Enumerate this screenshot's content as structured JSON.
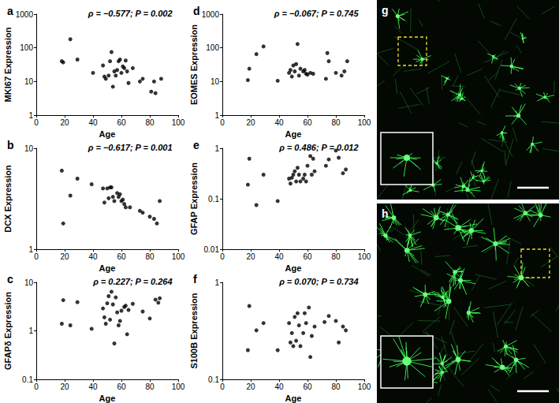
{
  "chart_data": [
    {
      "type": "scatter",
      "title": "a",
      "annotations": [
        "ρ = −0.577; P = 0.002"
      ],
      "x_label": "Age",
      "y_label": "MKI67 Expression",
      "x": [
        18,
        19,
        24,
        29,
        40,
        47,
        48,
        49,
        51,
        52,
        53,
        54,
        55,
        56,
        57,
        58,
        59,
        60,
        61,
        62,
        63,
        64,
        65,
        68,
        73,
        75,
        81,
        83,
        84,
        88
      ],
      "values": [
        40,
        37,
        180,
        45,
        18,
        30,
        14,
        12,
        15,
        40,
        75,
        7,
        20,
        15,
        22,
        40,
        45,
        18,
        28,
        25,
        42,
        20,
        9,
        25,
        10,
        12,
        5,
        10,
        4.5,
        12
      ],
      "xlim": [
        0,
        100
      ],
      "xticks": [
        0,
        20,
        40,
        60,
        80,
        100
      ],
      "ylim": [
        1,
        1000
      ],
      "yticks": [
        1,
        10,
        100,
        1000
      ],
      "log": "y",
      "grid": false,
      "color": "#000000",
      "marker": "circle"
    },
    {
      "type": "scatter",
      "title": "b",
      "annotations": [
        "ρ = −0.617; P = 0.001"
      ],
      "x_label": "Age",
      "y_label": "DCX Expression",
      "x": [
        18,
        19,
        24,
        29,
        39,
        47,
        48,
        50,
        51,
        52,
        53,
        54,
        55,
        57,
        58,
        59,
        60,
        61,
        62,
        63,
        66,
        73,
        75,
        80,
        83,
        85,
        87
      ],
      "values": [
        6,
        1.8,
        3.4,
        5,
        4.4,
        4,
        2.9,
        4,
        3.2,
        4.1,
        4.1,
        3.3,
        3.0,
        3.6,
        3.3,
        3.5,
        3.0,
        3.1,
        2.8,
        2.6,
        2.6,
        2.4,
        2.3,
        2.1,
        2.0,
        1.8,
        3.0
      ],
      "xlim": [
        0,
        100
      ],
      "xticks": [
        0,
        20,
        40,
        60,
        80,
        100
      ],
      "ylim": [
        1,
        10
      ],
      "yticks": [
        1,
        10
      ],
      "log": "y",
      "grid": false,
      "color": "#000000",
      "marker": "circle"
    },
    {
      "type": "scatter",
      "title": "c",
      "annotations": [
        "ρ = 0.227; P = 0.264"
      ],
      "x_label": "Age",
      "y_label": "GFAPδ Expression",
      "x": [
        18,
        19,
        24,
        29,
        39,
        47,
        48,
        49,
        50,
        51,
        52,
        53,
        54,
        55,
        56,
        57,
        58,
        59,
        60,
        62,
        63,
        64,
        65,
        68,
        75,
        80,
        84,
        86,
        87
      ],
      "values": [
        1.4,
        4.3,
        1.3,
        3.9,
        1.1,
        2.9,
        1.9,
        1.4,
        3.7,
        5.2,
        1.7,
        6.4,
        3.5,
        0.55,
        4.9,
        2.4,
        1.3,
        1.6,
        2.6,
        3.1,
        3.3,
        0.85,
        2.7,
        3.6,
        2.5,
        1.8,
        4.4,
        3.8,
        4.7
      ],
      "xlim": [
        0,
        100
      ],
      "xticks": [
        0,
        20,
        40,
        60,
        80,
        100
      ],
      "ylim": [
        0.1,
        10
      ],
      "yticks": [
        0.1,
        1,
        10
      ],
      "log": "y",
      "grid": false,
      "color": "#000000",
      "marker": "circle"
    },
    {
      "type": "scatter",
      "title": "d",
      "annotations": [
        "ρ = −0.067; P = 0.745"
      ],
      "x_label": "Age",
      "y_label": "EOMES Expression",
      "x": [
        18,
        19,
        24,
        29,
        39,
        47,
        48,
        49,
        50,
        51,
        52,
        53,
        54,
        55,
        57,
        58,
        59,
        60,
        62,
        64,
        73,
        74,
        75,
        80,
        84,
        86,
        88
      ],
      "values": [
        11,
        24,
        65,
        110,
        10.5,
        18,
        22,
        14,
        30,
        20,
        33,
        130,
        15,
        24,
        20,
        22,
        17,
        16,
        18,
        17,
        12,
        70,
        40,
        18,
        15,
        20,
        40
      ],
      "xlim": [
        0,
        100
      ],
      "xticks": [
        0,
        20,
        40,
        60,
        80,
        100
      ],
      "ylim": [
        1,
        1000
      ],
      "yticks": [
        1,
        10,
        100,
        1000
      ],
      "log": "y",
      "grid": false,
      "color": "#000000",
      "marker": "circle"
    },
    {
      "type": "scatter",
      "title": "e",
      "annotations": [
        "ρ = 0.486; P = 0.012"
      ],
      "x_label": "Age",
      "y_label": "GFAP Expression",
      "x": [
        18,
        19,
        24,
        29,
        39,
        47,
        48,
        49,
        50,
        51,
        52,
        53,
        54,
        55,
        57,
        58,
        59,
        60,
        62,
        63,
        64,
        65,
        73,
        75,
        80,
        82,
        85,
        87
      ],
      "values": [
        0.19,
        0.62,
        0.075,
        0.3,
        0.09,
        0.25,
        0.2,
        0.26,
        0.3,
        0.35,
        0.22,
        0.41,
        0.3,
        0.22,
        0.25,
        0.3,
        0.22,
        0.45,
        0.7,
        0.3,
        0.62,
        0.35,
        0.45,
        0.6,
        0.9,
        0.65,
        0.32,
        0.38
      ],
      "xlim": [
        0,
        100
      ],
      "xticks": [
        0,
        20,
        40,
        60,
        80,
        100
      ],
      "ylim": [
        0.01,
        1
      ],
      "yticks": [
        0.01,
        0.1,
        1
      ],
      "log": "y",
      "grid": false,
      "color": "#000000",
      "marker": "circle"
    },
    {
      "type": "scatter",
      "title": "f",
      "annotations": [
        "ρ = 0.070; P = 0.734"
      ],
      "x_label": "Age",
      "y_label": "S100B Expression",
      "x": [
        18,
        19,
        24,
        29,
        39,
        47,
        48,
        49,
        50,
        51,
        52,
        53,
        54,
        55,
        57,
        58,
        59,
        61,
        62,
        63,
        65,
        72,
        75,
        80,
        82,
        85,
        87
      ],
      "values": [
        0.2,
        0.57,
        0.32,
        0.38,
        0.2,
        0.38,
        0.24,
        0.3,
        0.22,
        0.44,
        0.25,
        0.48,
        0.36,
        0.22,
        0.3,
        0.48,
        0.38,
        0.55,
        0.17,
        0.28,
        0.35,
        0.39,
        0.45,
        0.4,
        0.24,
        0.35,
        0.32
      ],
      "xlim": [
        0,
        100
      ],
      "xticks": [
        0,
        20,
        40,
        60,
        80,
        100
      ],
      "ylim": [
        0.1,
        1
      ],
      "yticks": [
        0.1,
        1
      ],
      "log": "y",
      "grid": false,
      "color": "#000000",
      "marker": "circle"
    }
  ],
  "images": [
    {
      "title": "g"
    },
    {
      "title": "h"
    }
  ]
}
